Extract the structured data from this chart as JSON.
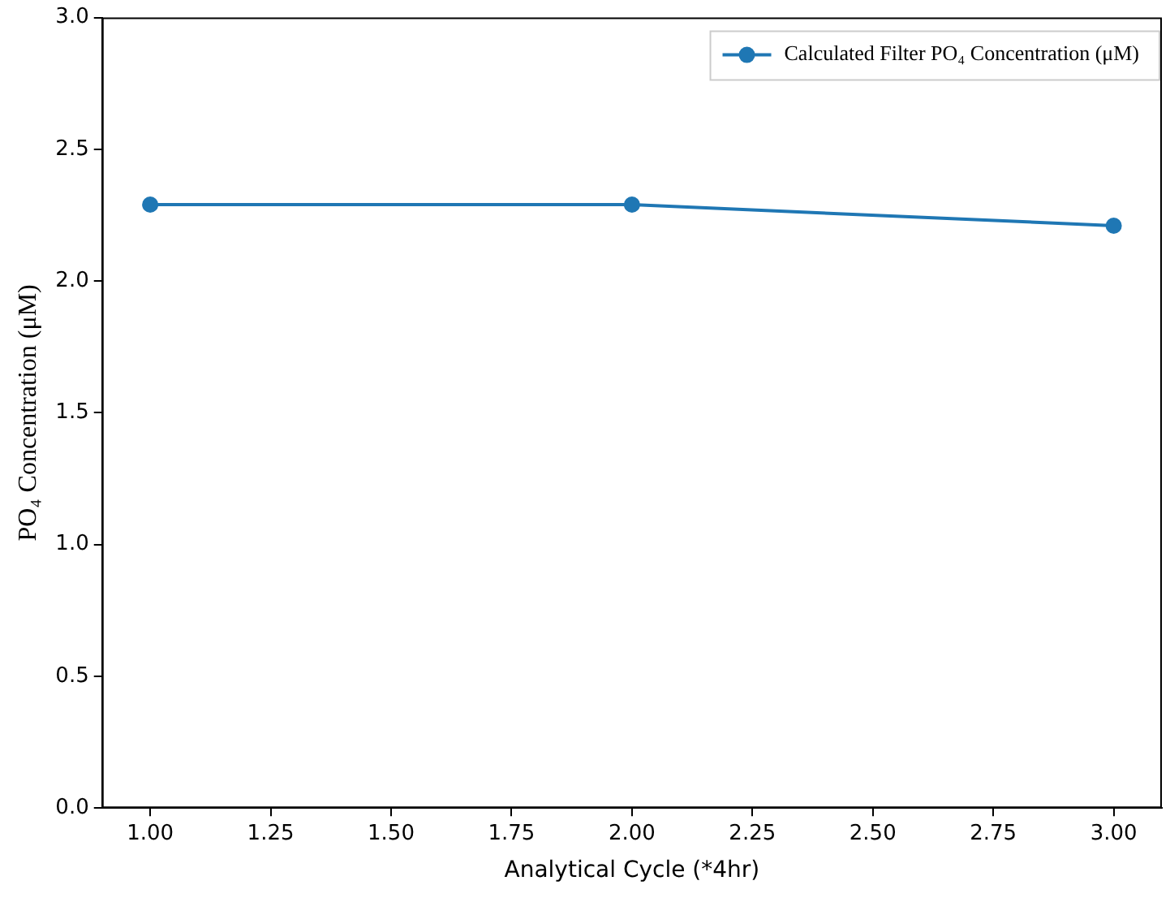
{
  "chart_data": {
    "type": "line",
    "xlabel": "Analytical Cycle (*4hr)",
    "ylabel": "PO₄ Concentration (μM)",
    "x": [
      1,
      2,
      3
    ],
    "series": [
      {
        "name": "Calculated Filter PO₄ Concentration (μM)",
        "color": "#1f77b4",
        "values": [
          2.29,
          2.29,
          2.21
        ]
      }
    ],
    "xlim": [
      0.9,
      3.1
    ],
    "xticks": [
      {
        "value": 1,
        "label": "1.00"
      },
      {
        "value": 1.25,
        "label": "1.25"
      },
      {
        "value": 1.5,
        "label": "1.50"
      },
      {
        "value": 1.75,
        "label": "1.75"
      },
      {
        "value": 2,
        "label": "2.00"
      },
      {
        "value": 2.25,
        "label": "2.25"
      },
      {
        "value": 2.5,
        "label": "2.50"
      },
      {
        "value": 2.75,
        "label": "2.75"
      },
      {
        "value": 3,
        "label": "3.00"
      }
    ],
    "ylim": [
      0,
      3
    ],
    "yticks": [
      {
        "value": 0,
        "label": "0.0"
      },
      {
        "value": 0.5,
        "label": "0.5"
      },
      {
        "value": 1,
        "label": "1.0"
      },
      {
        "value": 1.5,
        "label": "1.5"
      },
      {
        "value": 2,
        "label": "2.0"
      },
      {
        "value": 2.5,
        "label": "2.5"
      },
      {
        "value": 3,
        "label": "3.0"
      }
    ],
    "grid": false,
    "legend": "top right",
    "marker": "circle",
    "line_style": "solid"
  }
}
